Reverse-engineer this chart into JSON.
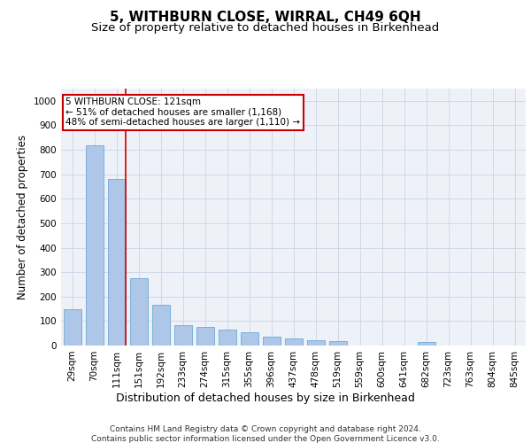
{
  "title": "5, WITHBURN CLOSE, WIRRAL, CH49 6QH",
  "subtitle": "Size of property relative to detached houses in Birkenhead",
  "xlabel": "Distribution of detached houses by size in Birkenhead",
  "ylabel": "Number of detached properties",
  "categories": [
    "29sqm",
    "70sqm",
    "111sqm",
    "151sqm",
    "192sqm",
    "233sqm",
    "274sqm",
    "315sqm",
    "355sqm",
    "396sqm",
    "437sqm",
    "478sqm",
    "519sqm",
    "559sqm",
    "600sqm",
    "641sqm",
    "682sqm",
    "723sqm",
    "763sqm",
    "804sqm",
    "845sqm"
  ],
  "values": [
    148,
    820,
    680,
    275,
    165,
    83,
    75,
    65,
    55,
    38,
    28,
    20,
    18,
    0,
    0,
    0,
    15,
    0,
    0,
    0,
    0
  ],
  "bar_color": "#aec6e8",
  "bar_edge_color": "#5a9fd4",
  "grid_color": "#d0d8e8",
  "background_color": "#eef2f8",
  "annotation_text": "5 WITHBURN CLOSE: 121sqm\n← 51% of detached houses are smaller (1,168)\n48% of semi-detached houses are larger (1,110) →",
  "annotation_box_color": "#ffffff",
  "annotation_box_edge_color": "#cc0000",
  "vline_x_index": 2,
  "vline_color": "#cc0000",
  "ylim": [
    0,
    1050
  ],
  "yticks": [
    0,
    100,
    200,
    300,
    400,
    500,
    600,
    700,
    800,
    900,
    1000
  ],
  "footer_line1": "Contains HM Land Registry data © Crown copyright and database right 2024.",
  "footer_line2": "Contains public sector information licensed under the Open Government Licence v3.0.",
  "title_fontsize": 11,
  "subtitle_fontsize": 9.5,
  "xlabel_fontsize": 9,
  "ylabel_fontsize": 8.5,
  "tick_fontsize": 7.5,
  "annotation_fontsize": 7.5,
  "footer_fontsize": 6.5
}
